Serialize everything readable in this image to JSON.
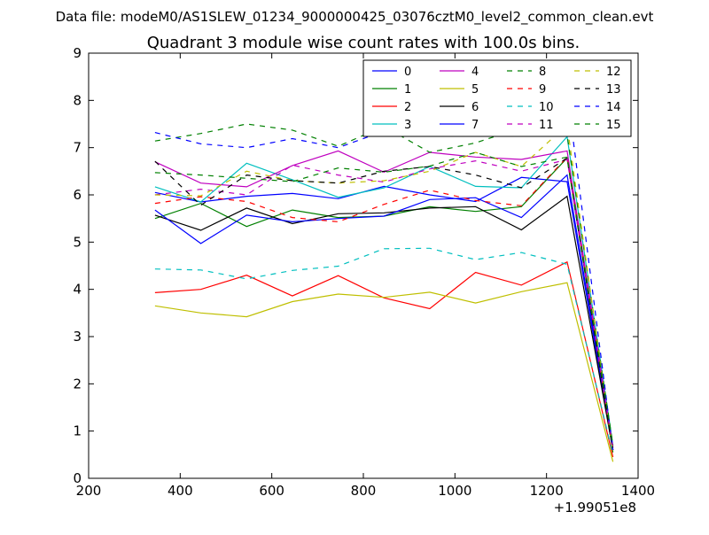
{
  "header": {
    "data_file_text": "Data file: modeM0/AS1SLEW_01234_9000000425_03076cztM0_level2_common_clean.evt"
  },
  "chart_data": {
    "type": "line",
    "title": "Quadrant 3 module wise count rates with 100.0s bins.",
    "xlabel": "",
    "ylabel": "",
    "x_offset_label": "+1.99051e8",
    "xlim": [
      200,
      1400
    ],
    "ylim": [
      0,
      9
    ],
    "x_ticks": [
      200,
      400,
      600,
      800,
      1000,
      1200,
      1400
    ],
    "y_ticks": [
      0,
      1,
      2,
      3,
      4,
      5,
      6,
      7,
      8,
      9
    ],
    "grid": false,
    "legend_position": "top-right",
    "legend_columns": 4,
    "x": [
      345,
      445,
      545,
      645,
      745,
      845,
      945,
      1045,
      1145,
      1245,
      1345
    ],
    "series": [
      {
        "name": "0",
        "color": "#0000ff",
        "dash": "solid",
        "values": [
          6.05,
          5.85,
          5.97,
          6.03,
          5.92,
          6.18,
          6.0,
          5.86,
          6.37,
          6.28,
          0.6
        ]
      },
      {
        "name": "1",
        "color": "#008000",
        "dash": "solid",
        "values": [
          5.5,
          5.82,
          5.33,
          5.68,
          5.52,
          5.55,
          5.75,
          5.65,
          5.75,
          6.78,
          0.55
        ]
      },
      {
        "name": "2",
        "color": "#ff0000",
        "dash": "solid",
        "values": [
          3.93,
          4.0,
          4.3,
          3.86,
          4.29,
          3.82,
          3.59,
          4.36,
          4.09,
          4.58,
          0.45
        ]
      },
      {
        "name": "3",
        "color": "#00bfbf",
        "dash": "solid",
        "values": [
          6.17,
          5.85,
          6.67,
          6.32,
          5.95,
          6.15,
          6.6,
          6.18,
          6.15,
          7.23,
          0.7
        ]
      },
      {
        "name": "4",
        "color": "#bf00bf",
        "dash": "solid",
        "values": [
          6.7,
          6.25,
          6.17,
          6.62,
          6.93,
          6.48,
          6.9,
          6.8,
          6.75,
          6.93,
          0.65
        ]
      },
      {
        "name": "5",
        "color": "#bfbf00",
        "dash": "solid",
        "values": [
          3.65,
          3.5,
          3.42,
          3.74,
          3.9,
          3.83,
          3.94,
          3.71,
          3.95,
          4.14,
          0.35
        ]
      },
      {
        "name": "6",
        "color": "#000000",
        "dash": "solid",
        "values": [
          5.57,
          5.25,
          5.72,
          5.39,
          5.6,
          5.62,
          5.72,
          5.75,
          5.26,
          5.97,
          0.6
        ]
      },
      {
        "name": "7",
        "color": "#0000ff",
        "dash": "solid",
        "values": [
          5.68,
          4.97,
          5.57,
          5.43,
          5.5,
          5.55,
          5.9,
          5.94,
          5.52,
          6.42,
          0.65
        ]
      },
      {
        "name": "8",
        "color": "#008000",
        "dash": "dashed",
        "values": [
          7.14,
          7.3,
          7.5,
          7.37,
          7.03,
          7.45,
          6.9,
          7.1,
          7.42,
          7.27,
          0.7
        ]
      },
      {
        "name": "9",
        "color": "#ff0000",
        "dash": "dashed",
        "values": [
          5.82,
          5.96,
          5.86,
          5.52,
          5.43,
          5.8,
          6.1,
          5.88,
          5.77,
          6.8,
          0.6
        ]
      },
      {
        "name": "10",
        "color": "#00bfbf",
        "dash": "dashed",
        "values": [
          4.43,
          4.41,
          4.22,
          4.4,
          4.49,
          4.86,
          4.87,
          4.63,
          4.78,
          4.53,
          0.5
        ]
      },
      {
        "name": "11",
        "color": "#bf00bf",
        "dash": "dashed",
        "values": [
          6.0,
          6.12,
          6.0,
          6.63,
          6.42,
          6.27,
          6.55,
          6.72,
          6.5,
          6.75,
          0.65
        ]
      },
      {
        "name": "12",
        "color": "#bfbf00",
        "dash": "dashed",
        "values": [
          6.0,
          5.98,
          6.5,
          6.3,
          6.25,
          6.3,
          6.5,
          6.9,
          6.6,
          7.48,
          0.55
        ]
      },
      {
        "name": "13",
        "color": "#000000",
        "dash": "dashed",
        "values": [
          6.71,
          5.78,
          6.42,
          6.3,
          6.25,
          6.5,
          6.6,
          6.42,
          6.15,
          6.78,
          0.6
        ]
      },
      {
        "name": "14",
        "color": "#0000ff",
        "dash": "dashed",
        "values": [
          7.32,
          7.08,
          7.0,
          7.19,
          7.0,
          7.35,
          7.73,
          8.0,
          7.3,
          8.17,
          0.6
        ]
      },
      {
        "name": "15",
        "color": "#008000",
        "dash": "dashed",
        "values": [
          6.47,
          6.42,
          6.35,
          6.28,
          6.57,
          6.48,
          6.61,
          6.9,
          6.6,
          6.8,
          0.7
        ]
      }
    ]
  }
}
